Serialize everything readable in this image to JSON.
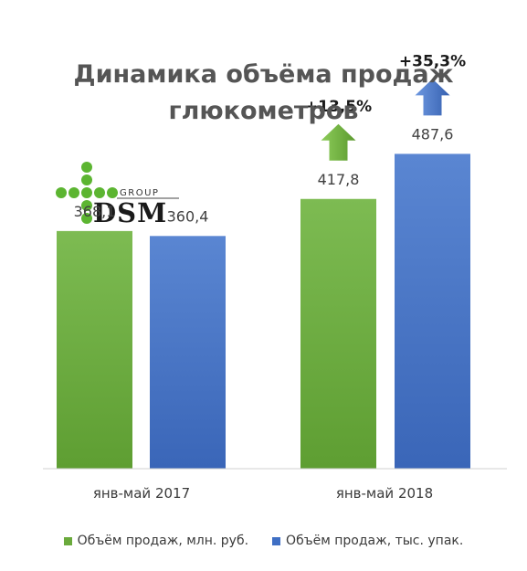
{
  "chart_data": {
    "type": "bar",
    "title": "Динамика объёма продаж глюкометров",
    "categories": [
      "янв-май 2017",
      "янв-май 2018"
    ],
    "series": [
      {
        "name": "Объём продаж, млн. руб.",
        "values": [
          368.1,
          417.8
        ],
        "labels": [
          "368,1",
          "417,8"
        ],
        "color": "#6aaa3c"
      },
      {
        "name": "Объём продаж, тыс. упак.",
        "values": [
          360.4,
          487.6
        ],
        "labels": [
          "360,4",
          "487,6"
        ],
        "color": "#3f6fc4"
      }
    ],
    "ylim": [
      0,
      600
    ],
    "grid": false,
    "legend": "bottom",
    "annotations": [
      {
        "text": "+13,5%",
        "series": 0,
        "category": 1,
        "icon": "up-arrow-icon"
      },
      {
        "text": "+35,3%",
        "series": 1,
        "category": 1,
        "icon": "up-arrow-icon"
      }
    ]
  },
  "logo": {
    "brand": "DSM",
    "sub": "GROUP",
    "color": "#5cb531",
    "text_color": "#1a1a1a"
  }
}
